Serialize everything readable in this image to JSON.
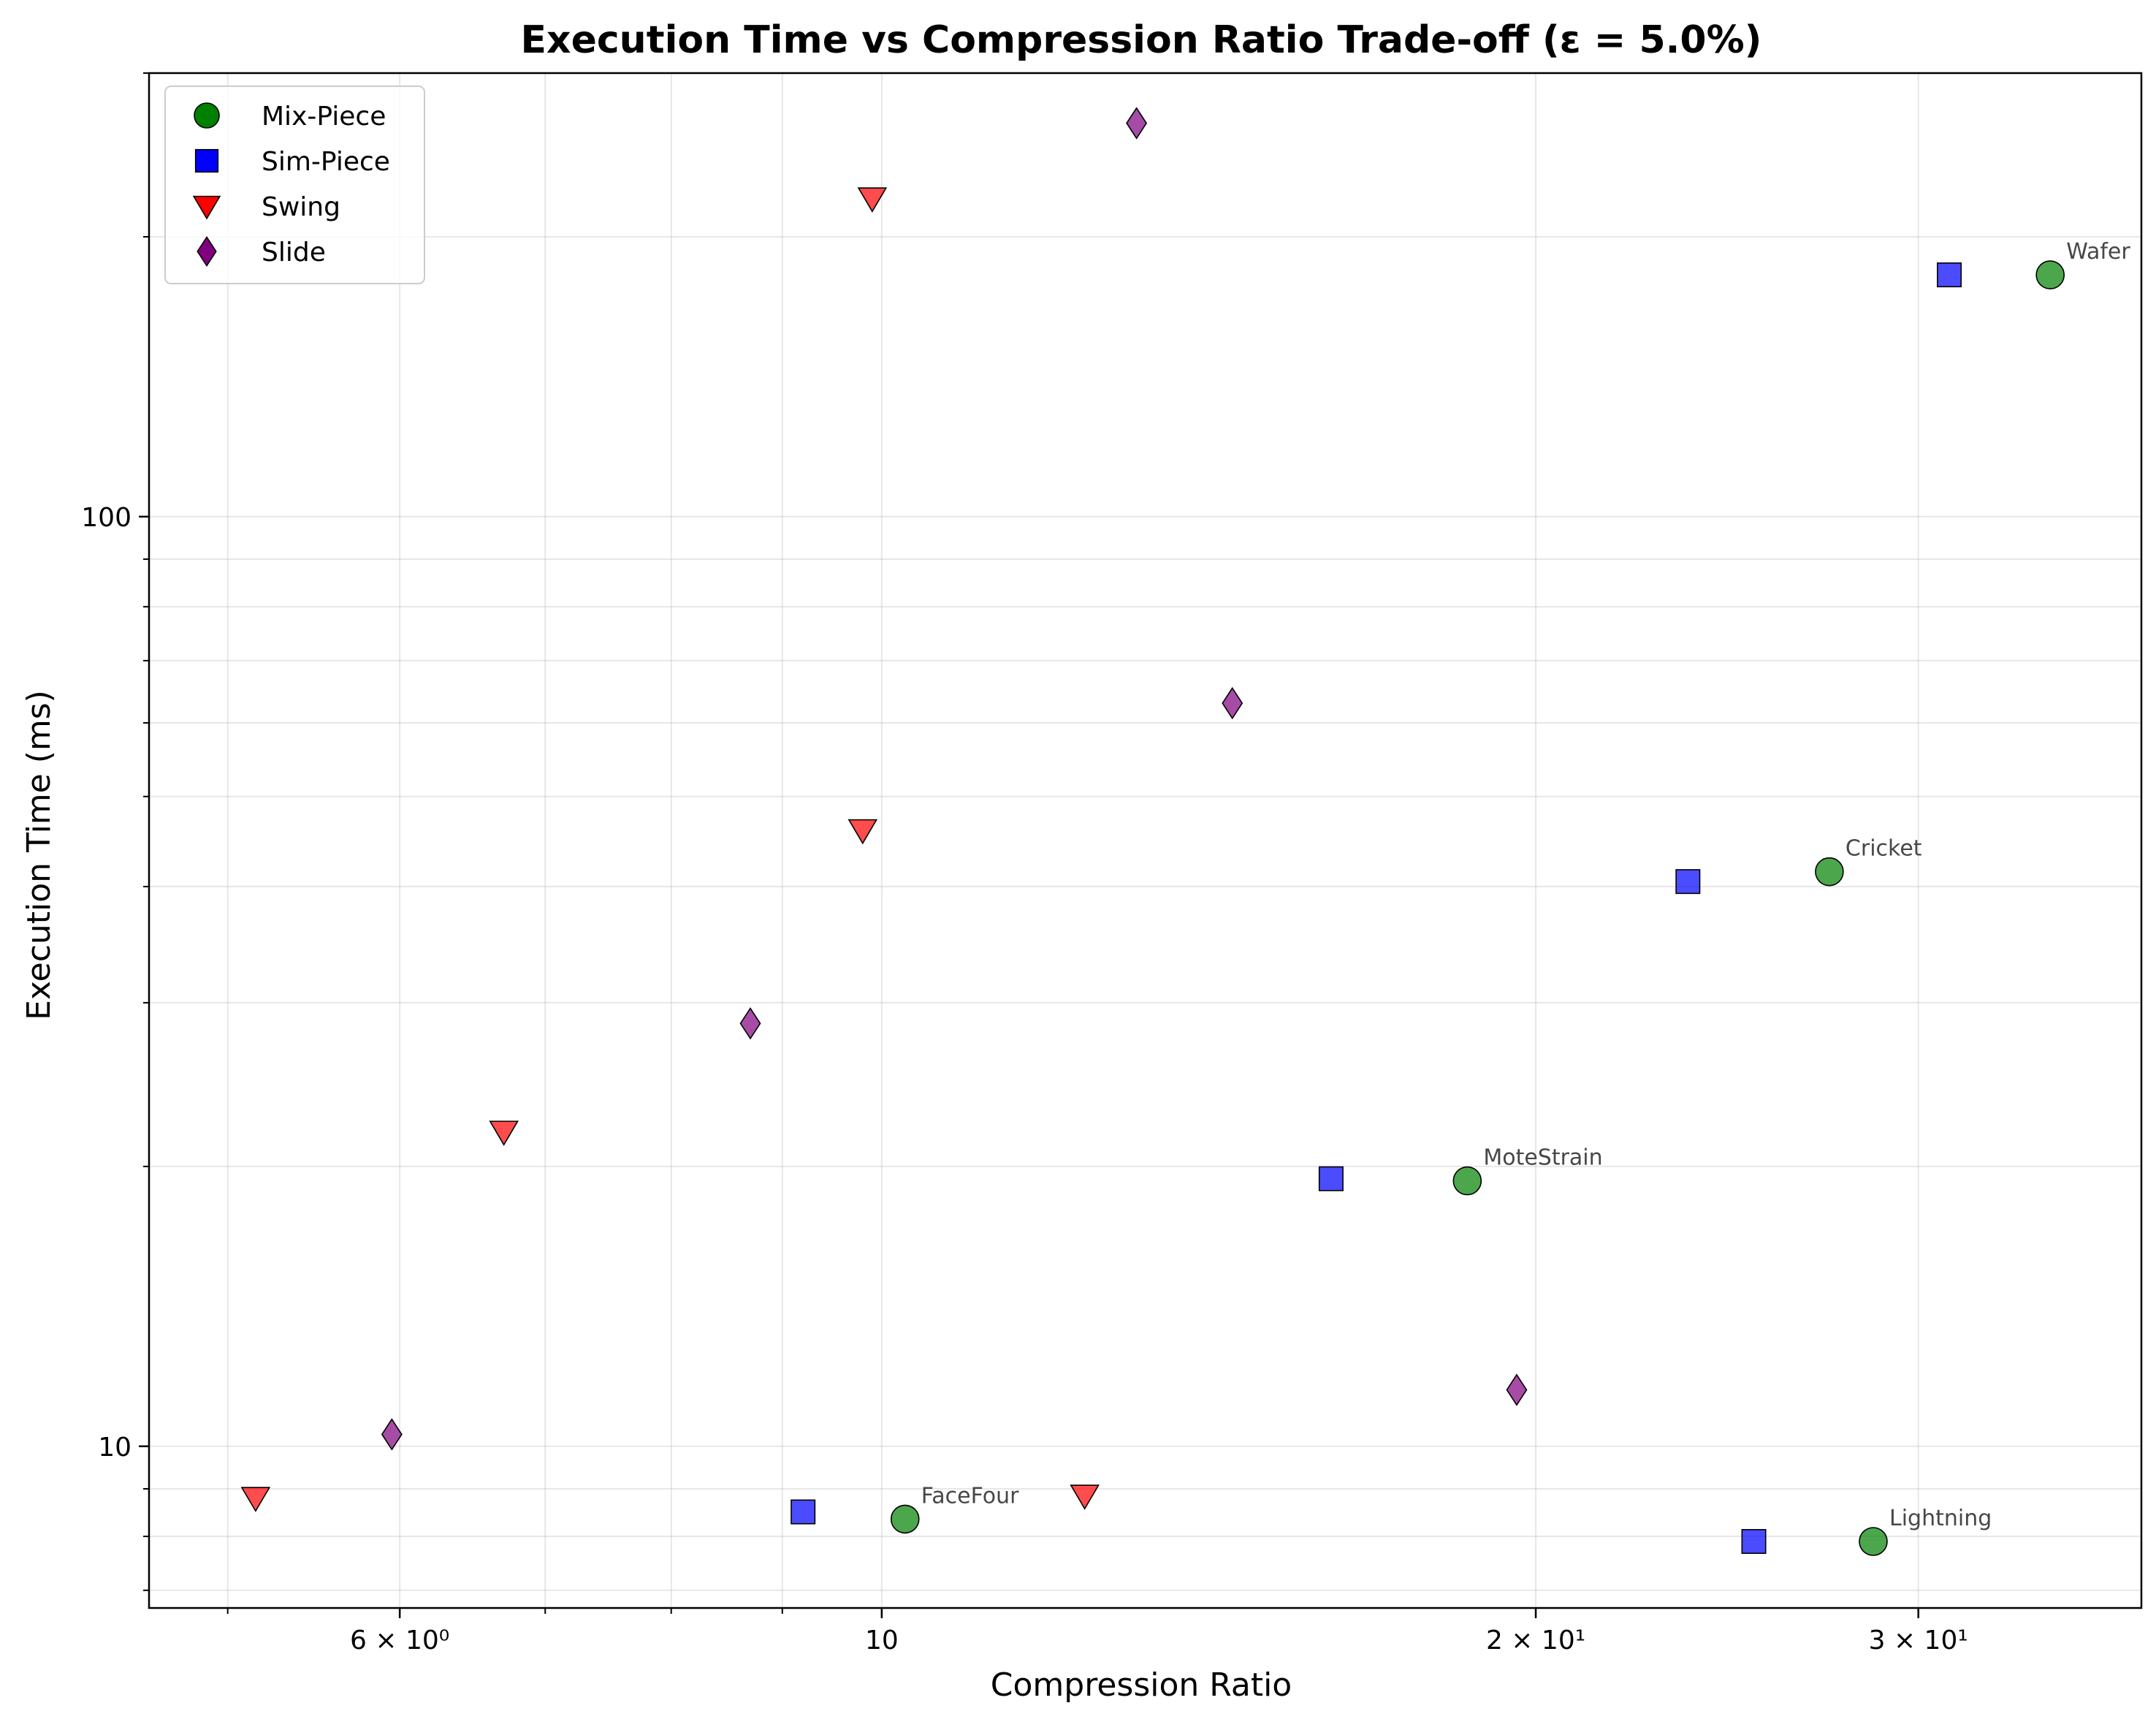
{
  "chart_data": {
    "type": "scatter",
    "title": "Execution Time vs Compression Ratio Trade-off (ε = 5.0%)",
    "xlabel": "Compression Ratio",
    "ylabel": "Execution Time (ms)",
    "xscale": "log",
    "yscale": "log",
    "xlim": [
      4.6,
      38
    ],
    "ylim": [
      6.7,
      300
    ],
    "grid": true,
    "legend_position": "top-left",
    "x_ticks": [
      {
        "value": 6,
        "label": "6 × 10⁰"
      },
      {
        "value": 10,
        "label": "10"
      },
      {
        "value": 20,
        "label": "2 × 10¹"
      },
      {
        "value": 30,
        "label": "3 × 10¹"
      }
    ],
    "y_ticks": [
      {
        "value": 10,
        "label": "10"
      },
      {
        "value": 100,
        "label": "100"
      }
    ],
    "series": [
      {
        "name": "Mix-Piece",
        "marker": "circle",
        "color": "#008000",
        "points": [
          {
            "x": 34.5,
            "y": 182,
            "label": "Wafer"
          },
          {
            "x": 27.3,
            "y": 41.5,
            "label": "Cricket"
          },
          {
            "x": 18.6,
            "y": 19.3,
            "label": "MoteStrain"
          },
          {
            "x": 10.25,
            "y": 8.35,
            "label": "FaceFour"
          },
          {
            "x": 28.6,
            "y": 7.9,
            "label": "Lightning"
          }
        ]
      },
      {
        "name": "Sim-Piece",
        "marker": "square",
        "color": "#0000ff",
        "points": [
          {
            "x": 31.0,
            "y": 182
          },
          {
            "x": 23.5,
            "y": 40.5
          },
          {
            "x": 16.1,
            "y": 19.4
          },
          {
            "x": 9.2,
            "y": 8.5
          },
          {
            "x": 25.2,
            "y": 7.9
          }
        ]
      },
      {
        "name": "Swing",
        "marker": "triangle-down",
        "color": "#ff0000",
        "points": [
          {
            "x": 9.9,
            "y": 220
          },
          {
            "x": 9.8,
            "y": 46
          },
          {
            "x": 6.7,
            "y": 21.8
          },
          {
            "x": 5.15,
            "y": 8.8
          },
          {
            "x": 12.4,
            "y": 8.85
          }
        ]
      },
      {
        "name": "Slide",
        "marker": "diamond",
        "color": "#800080",
        "points": [
          {
            "x": 13.1,
            "y": 265
          },
          {
            "x": 14.5,
            "y": 63
          },
          {
            "x": 8.7,
            "y": 28.5
          },
          {
            "x": 5.95,
            "y": 10.3
          },
          {
            "x": 19.6,
            "y": 11.5
          }
        ]
      }
    ]
  }
}
